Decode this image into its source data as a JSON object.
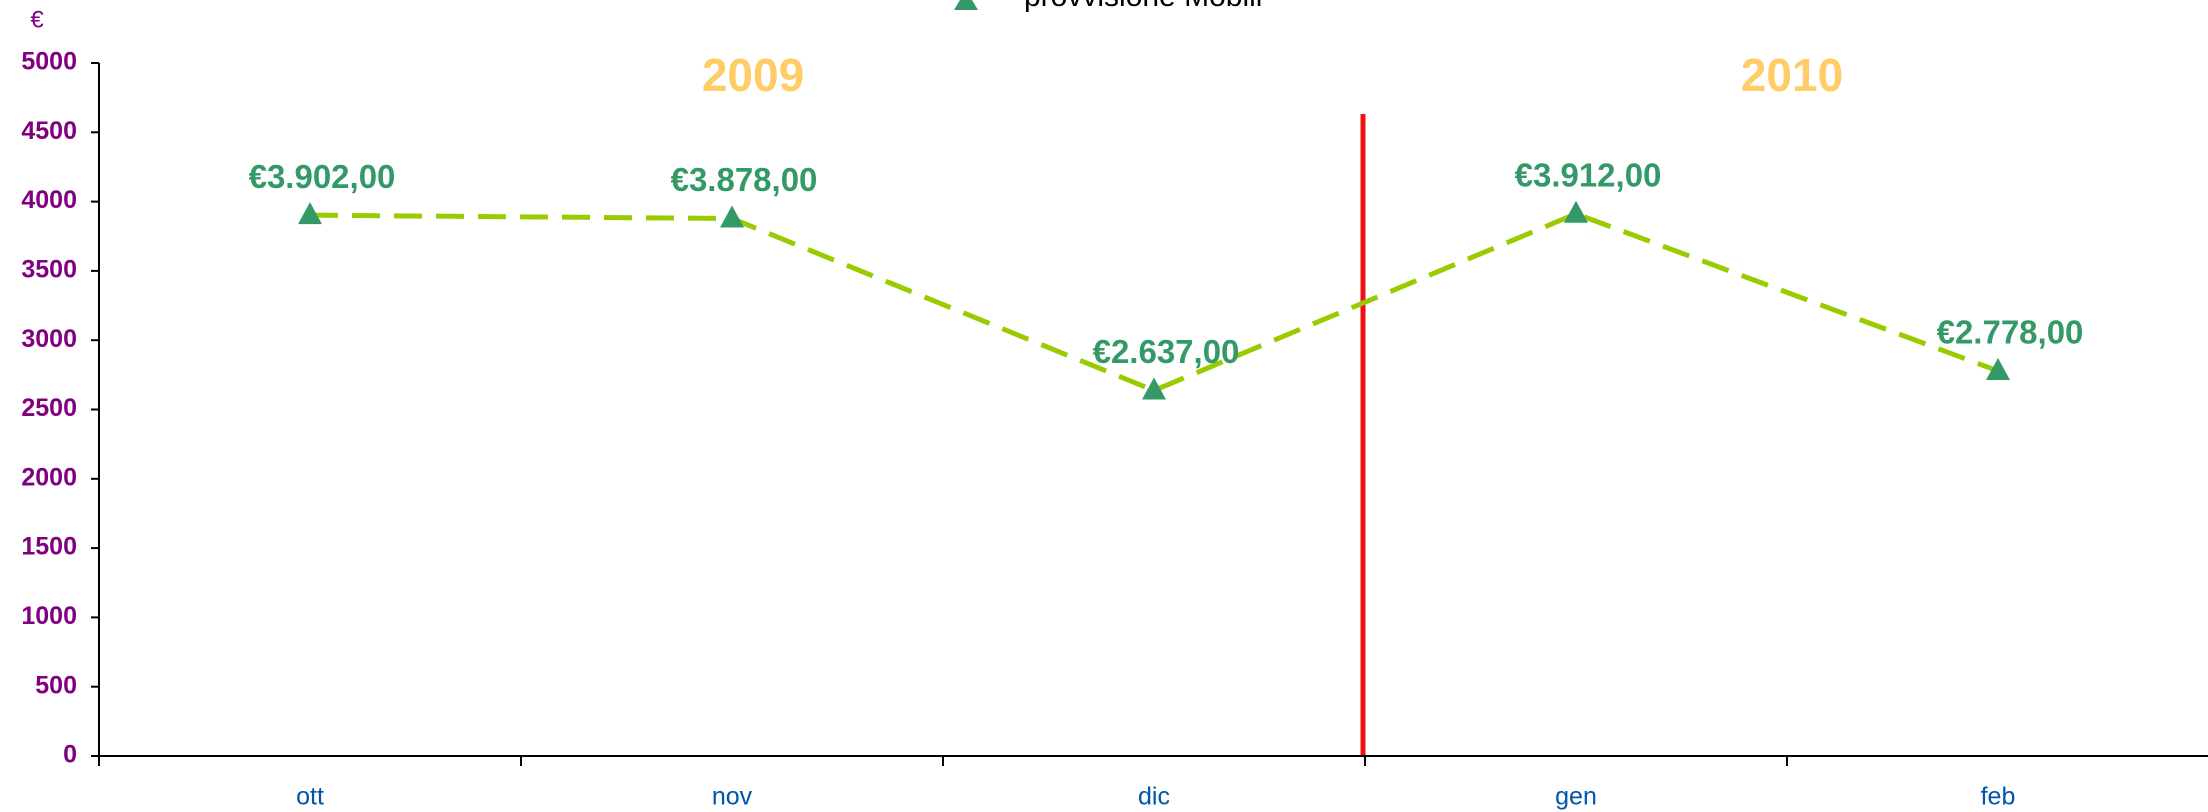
{
  "chart_data": {
    "type": "line",
    "unit_label": "€",
    "categories": [
      "ott",
      "nov",
      "dic",
      "gen",
      "feb"
    ],
    "series": [
      {
        "name": "provvisione Mobili",
        "color": "#99cc00",
        "marker_color": "#339966",
        "values": [
          3902,
          3878,
          2637,
          3912,
          2778
        ],
        "value_labels": [
          "€3.902,00",
          "€3.878,00",
          "€2.637,00",
          "€3.912,00",
          "€2.778,00"
        ]
      }
    ],
    "annotations": [
      "2009",
      "2010"
    ],
    "ylim": [
      0,
      5000
    ],
    "yticks": [
      0,
      500,
      1000,
      1500,
      2000,
      2500,
      3000,
      3500,
      4000,
      4500,
      5000
    ],
    "grid": false,
    "legend": "top"
  }
}
